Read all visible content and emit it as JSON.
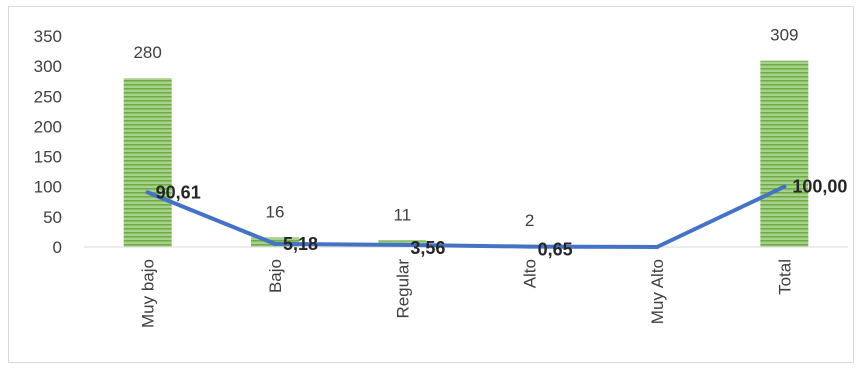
{
  "chart_data": {
    "type": "bar",
    "categories": [
      "Muy bajo",
      "Bajo",
      "Regular",
      "Alto",
      "Muy Alto",
      "Total"
    ],
    "ylim": [
      0,
      350
    ],
    "yticks": [
      "0",
      "50",
      "100",
      "150",
      "200",
      "250",
      "300",
      "350"
    ],
    "grid": false,
    "legend": "none",
    "series": [
      {
        "type": "bar",
        "values": [
          280,
          16,
          11,
          2,
          0,
          309
        ],
        "labels": [
          "280",
          "16",
          "11",
          "2",
          "",
          "309"
        ],
        "color": "#70ad47"
      },
      {
        "type": "line",
        "values": [
          90.61,
          5.18,
          3.56,
          0.65,
          0,
          100.0
        ],
        "labels": [
          "90,61",
          "5,18",
          "3,56",
          "0,65",
          "",
          "100,00"
        ],
        "color": "#4472c4"
      }
    ]
  }
}
